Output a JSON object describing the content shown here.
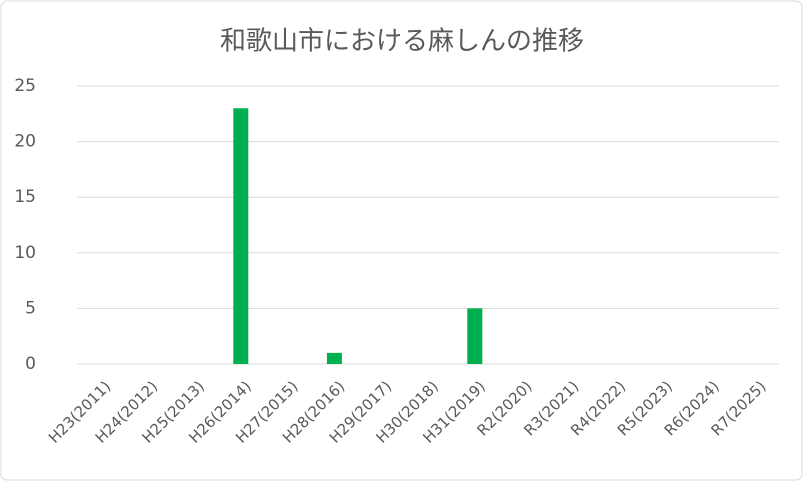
{
  "chart_data": {
    "type": "bar",
    "title": "和歌山市における麻しんの推移",
    "categories": [
      "H23(2011)",
      "H24(2012)",
      "H25(2013)",
      "H26(2014)",
      "H27(2015)",
      "H28(2016)",
      "H29(2017)",
      "H30(2018)",
      "H31(2019)",
      "R2(2020)",
      "R3(2021)",
      "R4(2022)",
      "R5(2023)",
      "R6(2024)",
      "R7(2025)"
    ],
    "values": [
      0,
      0,
      0,
      23,
      0,
      1,
      0,
      0,
      5,
      0,
      0,
      0,
      0,
      0,
      0
    ],
    "color": "#00b050",
    "ylim": [
      0,
      25
    ],
    "yticks": [
      0,
      5,
      10,
      15,
      20,
      25
    ],
    "grid": true
  }
}
